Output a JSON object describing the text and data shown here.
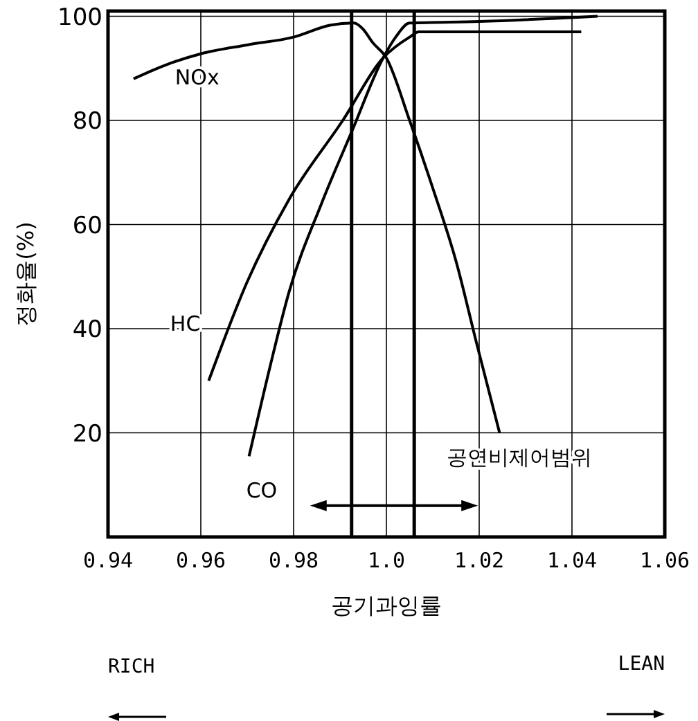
{
  "chart_data": {
    "type": "line",
    "xlabel": "공기과잉률",
    "ylabel": "정화율(%)",
    "xlim": [
      0.94,
      1.06
    ],
    "ylim": [
      0,
      101
    ],
    "xticks": [
      0.94,
      0.96,
      0.98,
      {
        "value": 1,
        "label": "1.0"
      },
      1.02,
      1.04,
      1.06
    ],
    "yticks": [
      20,
      40,
      60,
      80,
      100
    ],
    "grid": true,
    "marker": "none",
    "line_style": "solid",
    "series": [
      {
        "name": "NOx",
        "color": "#000000",
        "x": [
          0.9455,
          0.952,
          0.96,
          0.97,
          0.98,
          0.988,
          0.993,
          0.995,
          0.997,
          1.0,
          1.005,
          1.01,
          1.015,
          1.0195,
          1.0244
        ],
        "values": [
          88,
          90.5,
          92.8,
          94.5,
          96,
          98.3,
          98.7,
          97.5,
          95,
          92,
          80,
          67,
          53,
          37,
          20
        ]
      },
      {
        "name": "HC",
        "color": "#000000",
        "x": [
          0.9617,
          0.97,
          0.979,
          0.9906,
          0.9993,
          1.005,
          1.007,
          1.02,
          1.042
        ],
        "values": [
          30,
          49,
          64.8,
          80,
          92,
          96,
          97,
          97,
          97
        ]
      },
      {
        "name": "CO",
        "color": "#000000",
        "x": [
          0.9704,
          0.975,
          0.979,
          0.986,
          0.9926,
          0.9993,
          1.002,
          1.005,
          1.02,
          1.0455
        ],
        "values": [
          15.5,
          33,
          47,
          64,
          78,
          92,
          96,
          98.7,
          99,
          100
        ]
      }
    ],
    "ref_lines": [
      {
        "axis": "x",
        "value": 0.9925,
        "color": "#000000"
      },
      {
        "axis": "x",
        "value": 1.006,
        "color": "#000000"
      }
    ],
    "annotations": [
      "공연비제어범위",
      "RICH",
      "LEAN"
    ]
  }
}
